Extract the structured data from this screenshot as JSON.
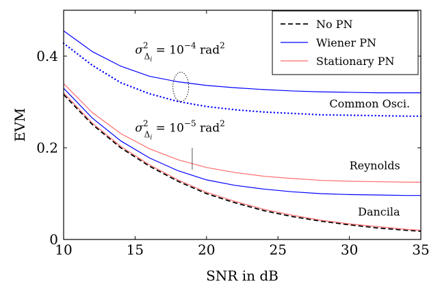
{
  "chart_data": {
    "type": "line",
    "xlabel": "SNR in dB",
    "ylabel": "EVM",
    "xlim": [
      10,
      35
    ],
    "ylim": [
      0,
      0.5
    ],
    "x_ticks": [
      10,
      15,
      20,
      25,
      30,
      35
    ],
    "x_tick_labels": [
      "10",
      "15",
      "20",
      "25",
      "30",
      "35"
    ],
    "y_ticks": [
      0,
      0.2,
      0.4
    ],
    "y_tick_labels": [
      "0",
      "0.2",
      "0.4"
    ],
    "grid": false,
    "legend_position": "top-right",
    "legend": [
      {
        "label": "No PN",
        "style": "dashed",
        "color": "#000000"
      },
      {
        "label": "Wiener PN",
        "style": "solid",
        "color": "#0000ff"
      },
      {
        "label": "Stationary PN",
        "style": "solid",
        "color": "#ff6b6b"
      }
    ],
    "x": [
      10,
      12,
      14,
      16,
      18,
      20,
      22,
      24,
      26,
      28,
      30,
      32,
      34,
      35
    ],
    "series": [
      {
        "key": "no_pn",
        "style": "dashed",
        "color": "#000000",
        "values": [
          0.316,
          0.251,
          0.2,
          0.16,
          0.127,
          0.1,
          0.08,
          0.063,
          0.05,
          0.04,
          0.032,
          0.025,
          0.02,
          0.018
        ]
      },
      {
        "key": "wiener_1e4",
        "style": "solid",
        "color": "#0000ff",
        "values": [
          0.455,
          0.41,
          0.378,
          0.356,
          0.344,
          0.336,
          0.331,
          0.327,
          0.324,
          0.322,
          0.321,
          0.32,
          0.32,
          0.32
        ]
      },
      {
        "key": "common_osci",
        "style": "dotted",
        "color": "#0000ff",
        "values": [
          0.428,
          0.38,
          0.342,
          0.318,
          0.301,
          0.29,
          0.283,
          0.278,
          0.275,
          0.272,
          0.271,
          0.27,
          0.269,
          0.269
        ]
      },
      {
        "key": "stationary_1e5",
        "style": "solid",
        "color": "#ff6b6b",
        "values": [
          0.34,
          0.277,
          0.231,
          0.198,
          0.174,
          0.157,
          0.146,
          0.138,
          0.133,
          0.129,
          0.127,
          0.126,
          0.125,
          0.125
        ]
      },
      {
        "key": "wiener_1e5",
        "style": "solid",
        "color": "#0000ff",
        "values": [
          0.33,
          0.265,
          0.215,
          0.178,
          0.15,
          0.13,
          0.118,
          0.11,
          0.104,
          0.1,
          0.098,
          0.097,
          0.096,
          0.096
        ]
      },
      {
        "key": "stationary_1e4_low",
        "style": "solid",
        "color": "#ff6b6b",
        "values": [
          0.32,
          0.254,
          0.203,
          0.163,
          0.13,
          0.103,
          0.083,
          0.066,
          0.053,
          0.042,
          0.034,
          0.028,
          0.022,
          0.02
        ]
      }
    ],
    "annotations": [
      {
        "key": "sigma_top",
        "sigma": "σ",
        "sup": "2",
        "sub": "Δ",
        "subsub": "i",
        "rest": " = 10",
        "exp": "−4",
        "unit": " rad",
        "unit_sup": "2",
        "x": 15.0,
        "y": 0.405
      },
      {
        "key": "sigma_bottom",
        "sigma": "σ",
        "sup": "2",
        "sub": "Δ",
        "subsub": "i",
        "rest": " = 10",
        "exp": "−5",
        "unit": " rad",
        "unit_sup": "2",
        "x": 15.0,
        "y": 0.235
      },
      {
        "key": "common_osci",
        "text": "Common Osci.",
        "x": 28.6,
        "y": 0.288
      },
      {
        "key": "reynolds",
        "text": "Reynolds",
        "x": 30.0,
        "y": 0.153
      },
      {
        "key": "dancila",
        "text": "Dancila",
        "x": 30.6,
        "y": 0.052
      }
    ],
    "ellipse_marker": {
      "x": 18.2,
      "y": 0.333,
      "rx": 0.55,
      "ry": 0.032
    },
    "vertical_marker": {
      "x": 19.0,
      "y1": 0.152,
      "y2": 0.2
    }
  }
}
